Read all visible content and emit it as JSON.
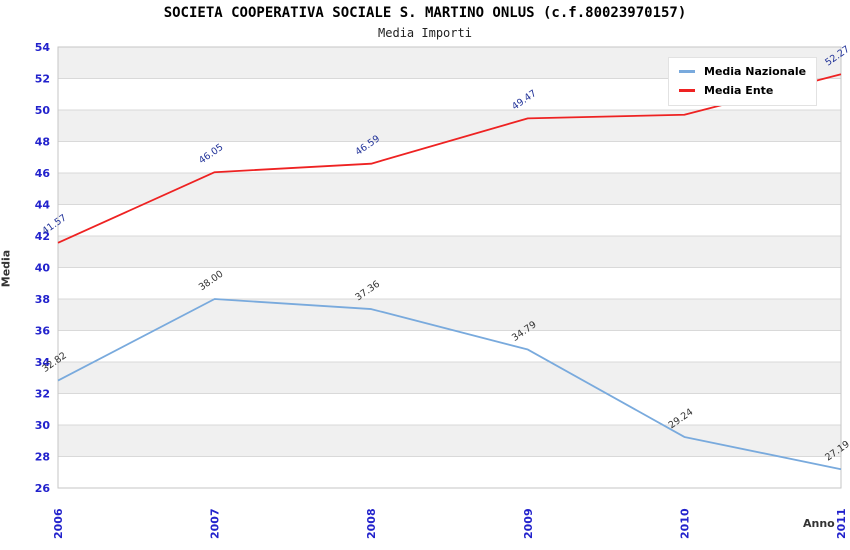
{
  "title": "SOCIETA COOPERATIVA SOCIALE S. MARTINO ONLUS (c.f.80023970157)",
  "subtitle": "Media Importi",
  "chart_data": {
    "type": "line",
    "x": [
      "2006",
      "2007",
      "2008",
      "2009",
      "2010",
      "2011"
    ],
    "xlabel": "Anno",
    "ylabel": "Media",
    "ylim": [
      26,
      54
    ],
    "ytick_step": 2,
    "grid": true,
    "alternating_bands": true,
    "legend_position": "top-right",
    "series": [
      {
        "name": "Media Nazionale",
        "color": "#79aadd",
        "label_color": "#333333",
        "values": [
          32.82,
          38.0,
          37.36,
          34.79,
          29.24,
          27.19
        ],
        "point_labels": [
          "32.82",
          "38.00",
          "37.36",
          "34.79",
          "29.24",
          "27.19"
        ]
      },
      {
        "name": "Media Ente",
        "color": "#ee2222",
        "label_color": "#223399",
        "values": [
          41.57,
          46.05,
          46.59,
          49.47,
          49.7,
          52.27
        ],
        "point_labels": [
          "41.57",
          "46.05",
          "46.59",
          "49.47",
          "49.7",
          "52.27"
        ]
      }
    ],
    "style": {
      "band_color": "#f0f0f0",
      "grid_color": "#d9d9d9",
      "border_color": "#c6c6c6",
      "tick_label_color": "#2222cc",
      "axis_title_color": "#333333"
    }
  }
}
